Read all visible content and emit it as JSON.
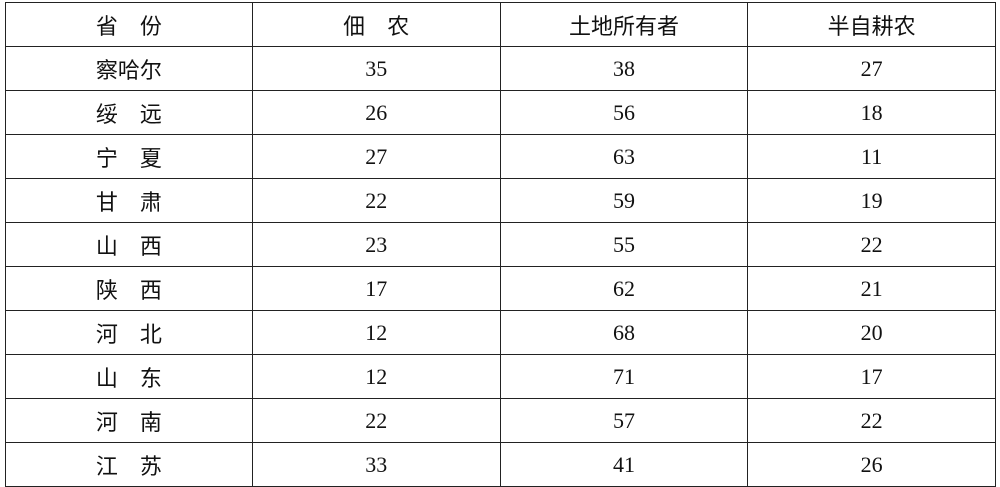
{
  "table": {
    "headers": [
      "省　份",
      "佃　农",
      "土地所有者",
      "半自耕农"
    ],
    "rows": [
      [
        "察哈尔",
        "35",
        "38",
        "27"
      ],
      [
        "绥　远",
        "26",
        "56",
        "18"
      ],
      [
        "宁　夏",
        "27",
        "63",
        "11"
      ],
      [
        "甘　肃",
        "22",
        "59",
        "19"
      ],
      [
        "山　西",
        "23",
        "55",
        "22"
      ],
      [
        "陕　西",
        "17",
        "62",
        "21"
      ],
      [
        "河　北",
        "12",
        "68",
        "20"
      ],
      [
        "山　东",
        "12",
        "71",
        "17"
      ],
      [
        "河　南",
        "22",
        "57",
        "22"
      ],
      [
        "江　苏",
        "33",
        "41",
        "26"
      ]
    ]
  }
}
